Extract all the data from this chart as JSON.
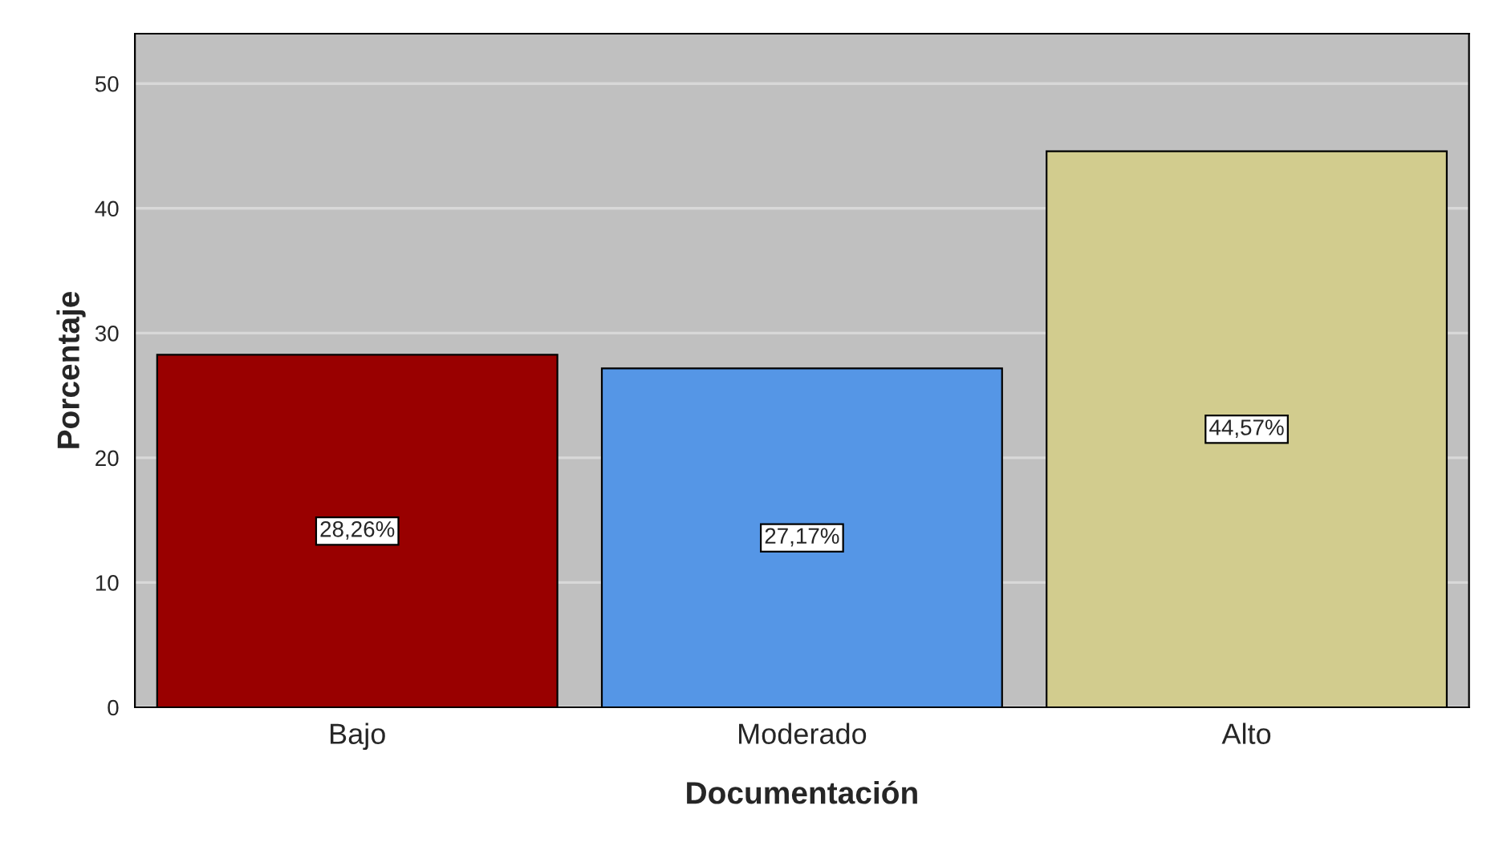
{
  "chart_data": {
    "type": "bar",
    "xlabel": "Documentación",
    "ylabel": "Porcentaje",
    "categories": [
      "Bajo",
      "Moderado",
      "Alto"
    ],
    "values": [
      28.26,
      27.17,
      44.57
    ],
    "colors": [
      "#990000",
      "#5596e6",
      "#d2cc8e"
    ],
    "value_labels": [
      "28,26%",
      "27,17%",
      "44,57%"
    ],
    "ylim": [
      0,
      54
    ],
    "yticks": [
      0,
      10,
      20,
      30,
      40,
      50
    ],
    "grid": "y"
  }
}
